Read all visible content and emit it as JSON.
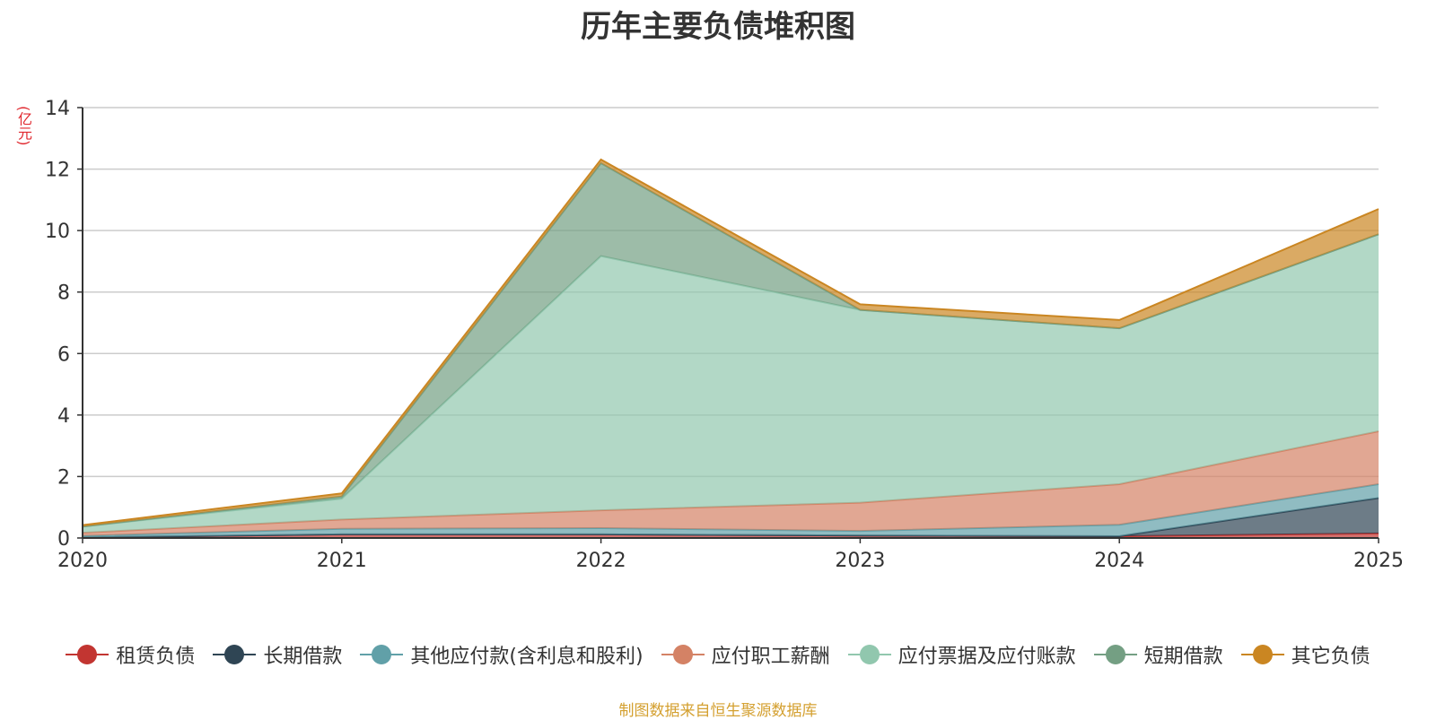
{
  "chart_data": {
    "type": "area",
    "stacked": true,
    "title": "历年主要负债堆积图",
    "unit": "(亿元)",
    "x": [
      "2020",
      "2021",
      "2022",
      "2023",
      "2024",
      "2025"
    ],
    "ylim": [
      0,
      14
    ],
    "yticks": [
      "0",
      "2",
      "4",
      "6",
      "8",
      "10",
      "12",
      "14"
    ],
    "grid": true,
    "legend_position": "bottom",
    "series": [
      {
        "name": "租赁负债",
        "color": "#c23531",
        "values": [
          0.02,
          0.12,
          0.12,
          0.08,
          0.06,
          0.15
        ]
      },
      {
        "name": "长期借款",
        "color": "#2f4554",
        "values": [
          0.0,
          0.0,
          0.0,
          0.0,
          0.0,
          1.15
        ]
      },
      {
        "name": "其他应付款(含利息和股利)",
        "color": "#61a0a8",
        "values": [
          0.05,
          0.18,
          0.2,
          0.15,
          0.37,
          0.45
        ]
      },
      {
        "name": "应付职工薪酬",
        "color": "#d48265",
        "values": [
          0.1,
          0.3,
          0.58,
          0.92,
          1.32,
          1.72
        ]
      },
      {
        "name": "应付票据及应付账款",
        "color": "#91c7ae",
        "values": [
          0.2,
          0.68,
          8.27,
          6.27,
          5.07,
          6.41
        ]
      },
      {
        "name": "短期借款",
        "color": "#749f83",
        "values": [
          0.0,
          0.07,
          3.02,
          0.0,
          0.0,
          0.0
        ]
      },
      {
        "name": "其它负债",
        "color": "#ca8622",
        "values": [
          0.05,
          0.1,
          0.12,
          0.18,
          0.27,
          0.82
        ]
      }
    ]
  },
  "source_note": "制图数据来自恒生聚源数据库"
}
